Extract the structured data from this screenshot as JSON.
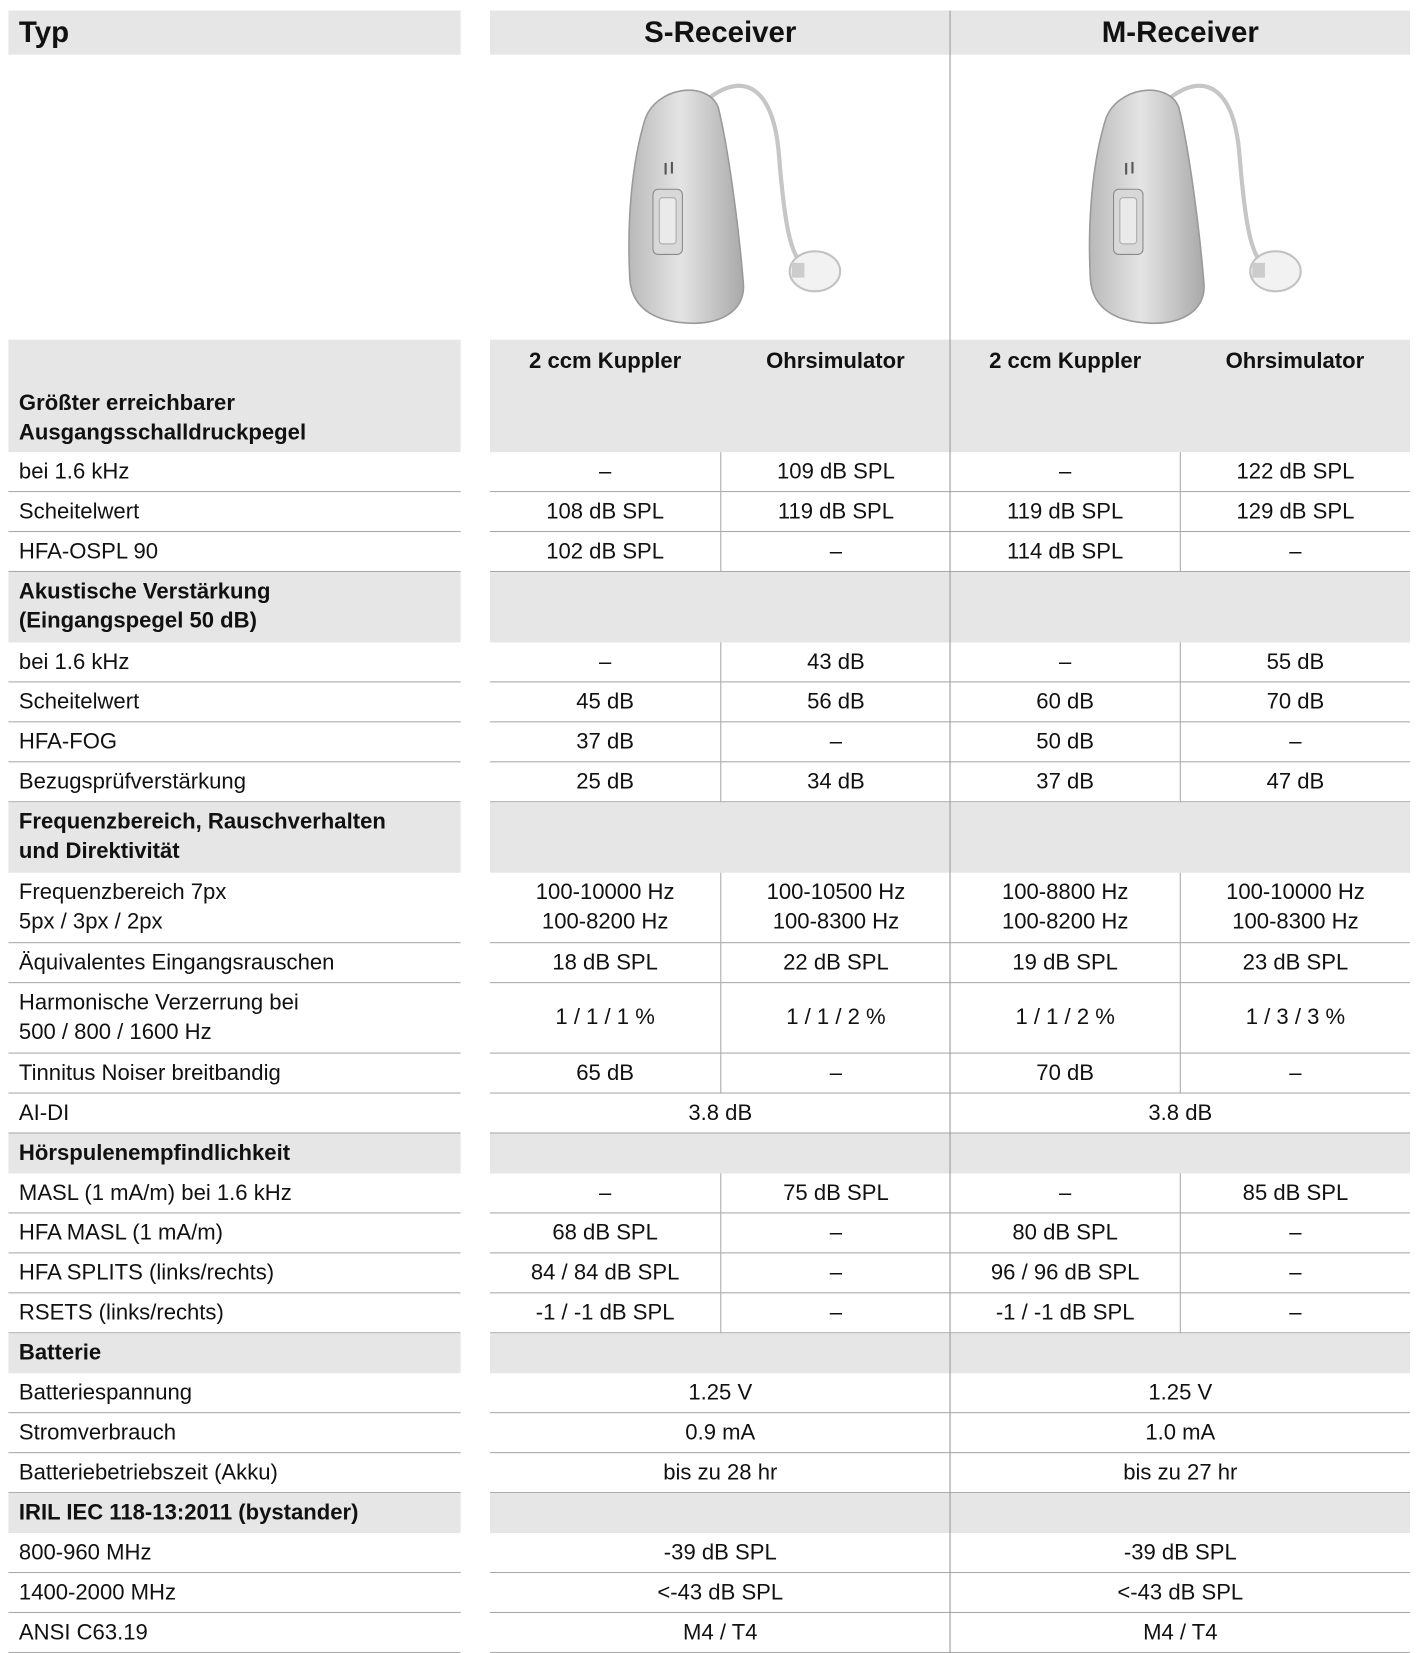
{
  "header": {
    "title": "Typ",
    "columns": [
      {
        "name": "S-Receiver",
        "subcolumns": [
          "2 ccm Kuppler",
          "Ohrsimulator"
        ]
      },
      {
        "name": "M-Receiver",
        "subcolumns": [
          "2 ccm Kuppler",
          "Ohrsimulator"
        ]
      }
    ]
  },
  "sections": [
    {
      "title": "Größter erreichbarer\nAusgangsschalldruckpegel",
      "rows": [
        {
          "label": "bei 1.6 kHz",
          "cells": [
            "–",
            "109 dB SPL",
            "–",
            "122 dB SPL"
          ]
        },
        {
          "label": "Scheitelwert",
          "cells": [
            "108 dB SPL",
            "119 dB SPL",
            "119 dB SPL",
            "129 dB SPL"
          ]
        },
        {
          "label": "HFA-OSPL 90",
          "cells": [
            "102 dB SPL",
            "–",
            "114 dB SPL",
            "–"
          ]
        }
      ]
    },
    {
      "title": "Akustische Verstärkung\n(Eingangspegel 50 dB)",
      "rows": [
        {
          "label": "bei 1.6 kHz",
          "cells": [
            "–",
            "43 dB",
            "–",
            "55 dB"
          ]
        },
        {
          "label": "Scheitelwert",
          "cells": [
            "45 dB",
            "56 dB",
            "60 dB",
            "70 dB"
          ]
        },
        {
          "label": "HFA-FOG",
          "cells": [
            "37 dB",
            "–",
            "50 dB",
            "–"
          ]
        },
        {
          "label": "Bezugsprüfverstärkung",
          "cells": [
            "25 dB",
            "34 dB",
            "37 dB",
            "47 dB"
          ]
        }
      ]
    },
    {
      "title": "Frequenzbereich, Rauschverhalten\nund Direktivität",
      "rows": [
        {
          "label": "Frequenzbereich 7px\n5px / 3px / 2px",
          "cells": [
            "100-10000 Hz\n100-8200 Hz",
            "100-10500 Hz\n100-8300 Hz",
            "100-8800 Hz\n100-8200 Hz",
            "100-10000 Hz\n100-8300 Hz"
          ]
        },
        {
          "label": "Äquivalentes Eingangsrauschen",
          "cells": [
            "18 dB SPL",
            "22 dB SPL",
            "19 dB SPL",
            "23 dB SPL"
          ]
        },
        {
          "label": "Harmonische Verzerrung bei\n500 / 800 / 1600 Hz",
          "cells": [
            "1 / 1 / 1 %",
            "1 / 1 / 2 %",
            "1 / 1 / 2 %",
            "1 / 3 / 3 %"
          ]
        },
        {
          "label": "Tinnitus Noiser breitbandig",
          "cells": [
            "65 dB",
            "–",
            "70 dB",
            "–"
          ]
        },
        {
          "label": "AI-DI",
          "cells": [
            "3.8 dB",
            "3.8 dB"
          ]
        }
      ]
    },
    {
      "title": "Hörspulenempfindlichkeit",
      "rows": [
        {
          "label": "MASL (1 mA/m) bei 1.6 kHz",
          "cells": [
            "–",
            "75 dB SPL",
            "–",
            "85 dB SPL"
          ]
        },
        {
          "label": "HFA MASL (1 mA/m)",
          "cells": [
            "68 dB SPL",
            "–",
            "80 dB SPL",
            "–"
          ]
        },
        {
          "label": "HFA SPLITS (links/rechts)",
          "cells": [
            "84 / 84 dB SPL",
            "–",
            "96 / 96 dB SPL",
            "–"
          ]
        },
        {
          "label": "RSETS (links/rechts)",
          "cells": [
            "-1 / -1 dB SPL",
            "–",
            "-1 / -1 dB SPL",
            "–"
          ]
        }
      ]
    },
    {
      "title": "Batterie",
      "rows": [
        {
          "label": "Batteriespannung",
          "cells": [
            "1.25 V",
            "1.25 V"
          ]
        },
        {
          "label": "Stromverbrauch",
          "cells": [
            "0.9 mA",
            "1.0 mA"
          ]
        },
        {
          "label": "Batteriebetriebszeit (Akku)",
          "cells": [
            "bis zu 28 hr",
            "bis zu 27 hr"
          ]
        }
      ]
    },
    {
      "title": "IRIL IEC 118-13:2011 (bystander)",
      "rows": [
        {
          "label": "800-960 MHz",
          "cells": [
            "-39 dB SPL",
            "-39 dB SPL"
          ]
        },
        {
          "label": "1400-2000 MHz",
          "cells": [
            "<-43 dB SPL",
            "<-43 dB SPL"
          ]
        },
        {
          "label": "ANSI C63.19",
          "cells": [
            "M4 / T4",
            "M4 / T4"
          ]
        }
      ]
    }
  ]
}
